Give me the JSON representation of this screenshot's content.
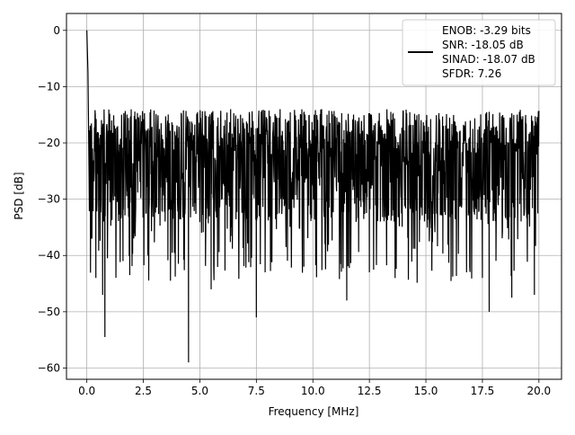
{
  "chart_data": {
    "type": "line",
    "xlabel": "Frequency [MHz]",
    "ylabel": "PSD [dB]",
    "xlim": [
      -0.9,
      21.0
    ],
    "ylim": [
      -62.0,
      3.0
    ],
    "x_ticks": [
      0.0,
      2.5,
      5.0,
      7.5,
      10.0,
      12.5,
      15.0,
      17.5,
      20.0
    ],
    "x_tick_labels": [
      "0.0",
      "2.5",
      "5.0",
      "7.5",
      "10.0",
      "12.5",
      "15.0",
      "17.5",
      "20.0"
    ],
    "y_ticks": [
      0,
      -10,
      -20,
      -30,
      -40,
      -50,
      -60
    ],
    "y_tick_labels": [
      "0",
      "−10",
      "−20",
      "−30",
      "−40",
      "−50",
      "−60"
    ],
    "grid": true,
    "legend_position": "top-right",
    "legend_lines": [
      "ENOB: -3.29 bits",
      "SNR: -18.05 dB",
      "SINAD: -18.07 dB",
      "SFDR: 7.26"
    ],
    "series": [
      {
        "color": "#000000",
        "x_range": [
          0.0,
          20.0
        ],
        "noise_floor_db": [
          -45,
          -13
        ],
        "peaks": [
          {
            "x": 0.0,
            "y": 0.0
          },
          {
            "x": 0.05,
            "y": -7.5
          },
          {
            "x": 0.1,
            "y": -26.0
          }
        ],
        "dips": [
          {
            "x": 0.2,
            "y": -37.0
          },
          {
            "x": 0.4,
            "y": -44.0
          },
          {
            "x": 0.7,
            "y": -47.0
          },
          {
            "x": 0.8,
            "y": -54.5
          },
          {
            "x": 1.6,
            "y": -41.0
          },
          {
            "x": 1.9,
            "y": -43.5
          },
          {
            "x": 2.7,
            "y": -40.0
          },
          {
            "x": 4.5,
            "y": -59.0
          },
          {
            "x": 5.5,
            "y": -46.0
          },
          {
            "x": 7.5,
            "y": -51.0
          },
          {
            "x": 9.6,
            "y": -42.0
          },
          {
            "x": 11.5,
            "y": -48.0
          },
          {
            "x": 12.5,
            "y": -43.0
          },
          {
            "x": 16.8,
            "y": -43.0
          },
          {
            "x": 17.5,
            "y": -44.0
          },
          {
            "x": 17.8,
            "y": -50.0
          },
          {
            "x": 18.8,
            "y": -47.5
          },
          {
            "x": 19.8,
            "y": -47.0
          }
        ]
      }
    ]
  }
}
